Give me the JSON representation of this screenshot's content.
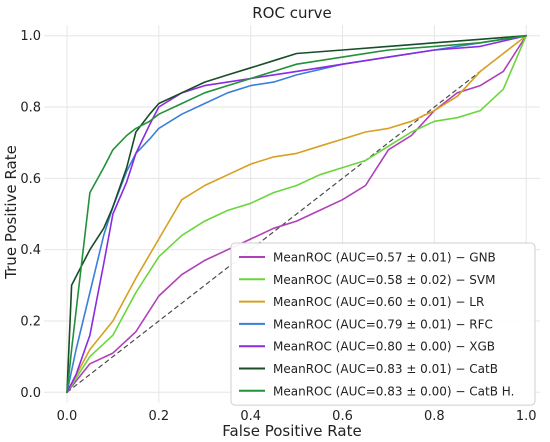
{
  "chart_data": {
    "type": "line",
    "title": "ROC curve",
    "xlabel": "False Positive Rate",
    "ylabel": "True Positive Rate",
    "xlim": [
      -0.05,
      1.03
    ],
    "ylim": [
      -0.03,
      1.03
    ],
    "xticks": [
      0.0,
      0.2,
      0.4,
      0.6,
      0.8,
      1.0
    ],
    "yticks": [
      0.0,
      0.2,
      0.4,
      0.6,
      0.8,
      1.0
    ],
    "xtick_labels": [
      "0.0",
      "0.2",
      "0.4",
      "0.6",
      "0.8",
      "1.0"
    ],
    "ytick_labels": [
      "0.0",
      "0.2",
      "0.4",
      "0.6",
      "0.8",
      "1.0"
    ],
    "grid": true,
    "legend_position": "lower-right",
    "reference_line": {
      "x": [
        0,
        1
      ],
      "y": [
        0,
        1
      ],
      "style": "dashed",
      "color": "#4a4a4a"
    },
    "series": [
      {
        "name": "MeanROC (AUC=0.57 ± 0.01) − GNB",
        "color": "#b040b8",
        "x": [
          0,
          0.05,
          0.1,
          0.15,
          0.2,
          0.25,
          0.3,
          0.35,
          0.4,
          0.45,
          0.5,
          0.55,
          0.6,
          0.65,
          0.7,
          0.75,
          0.8,
          0.85,
          0.9,
          0.95,
          1.0
        ],
        "y": [
          0,
          0.08,
          0.11,
          0.17,
          0.27,
          0.33,
          0.37,
          0.4,
          0.43,
          0.46,
          0.48,
          0.51,
          0.54,
          0.58,
          0.68,
          0.72,
          0.79,
          0.84,
          0.86,
          0.9,
          1.0
        ]
      },
      {
        "name": "MeanROC (AUC=0.58 ± 0.02) − SVM",
        "color": "#6ad63c",
        "x": [
          0,
          0.05,
          0.1,
          0.15,
          0.2,
          0.25,
          0.3,
          0.35,
          0.4,
          0.45,
          0.5,
          0.55,
          0.6,
          0.65,
          0.7,
          0.75,
          0.8,
          0.85,
          0.9,
          0.95,
          1.0
        ],
        "y": [
          0,
          0.1,
          0.16,
          0.28,
          0.38,
          0.44,
          0.48,
          0.51,
          0.53,
          0.56,
          0.58,
          0.61,
          0.63,
          0.65,
          0.69,
          0.73,
          0.76,
          0.77,
          0.79,
          0.85,
          1.0
        ]
      },
      {
        "name": "MeanROC (AUC=0.60 ± 0.01) − LR",
        "color": "#d7a021",
        "x": [
          0,
          0.05,
          0.1,
          0.15,
          0.2,
          0.25,
          0.3,
          0.35,
          0.4,
          0.45,
          0.5,
          0.55,
          0.6,
          0.65,
          0.7,
          0.75,
          0.8,
          0.85,
          0.9,
          0.95,
          1.0
        ],
        "y": [
          0,
          0.12,
          0.2,
          0.32,
          0.43,
          0.54,
          0.58,
          0.61,
          0.64,
          0.66,
          0.67,
          0.69,
          0.71,
          0.73,
          0.74,
          0.76,
          0.79,
          0.83,
          0.9,
          0.95,
          1.0
        ]
      },
      {
        "name": "MeanROC (AUC=0.79 ± 0.01) − RFC",
        "color": "#3b7fd9",
        "x": [
          0,
          0.02,
          0.05,
          0.08,
          0.1,
          0.13,
          0.15,
          0.18,
          0.2,
          0.25,
          0.3,
          0.35,
          0.4,
          0.45,
          0.5,
          0.6,
          0.7,
          0.8,
          0.9,
          1.0
        ],
        "y": [
          0,
          0.12,
          0.28,
          0.44,
          0.52,
          0.62,
          0.67,
          0.71,
          0.74,
          0.78,
          0.81,
          0.84,
          0.86,
          0.87,
          0.89,
          0.92,
          0.94,
          0.96,
          0.98,
          1.0
        ]
      },
      {
        "name": "MeanROC (AUC=0.80 ± 0.00) − XGB",
        "color": "#8a2be2",
        "x": [
          0,
          0.02,
          0.05,
          0.08,
          0.1,
          0.13,
          0.15,
          0.18,
          0.2,
          0.25,
          0.3,
          0.35,
          0.4,
          0.45,
          0.5,
          0.6,
          0.7,
          0.8,
          0.9,
          1.0
        ],
        "y": [
          0,
          0.05,
          0.16,
          0.36,
          0.5,
          0.59,
          0.67,
          0.75,
          0.8,
          0.84,
          0.86,
          0.87,
          0.88,
          0.89,
          0.9,
          0.92,
          0.94,
          0.96,
          0.97,
          1.0
        ]
      },
      {
        "name": "MeanROC (AUC=0.83 ± 0.01) − CatB",
        "color": "#184d28",
        "x": [
          0,
          0.01,
          0.03,
          0.05,
          0.08,
          0.1,
          0.13,
          0.15,
          0.18,
          0.2,
          0.25,
          0.3,
          0.35,
          0.4,
          0.45,
          0.5,
          0.6,
          0.7,
          0.8,
          0.9,
          1.0
        ],
        "y": [
          0,
          0.3,
          0.35,
          0.4,
          0.46,
          0.52,
          0.63,
          0.73,
          0.78,
          0.81,
          0.84,
          0.87,
          0.89,
          0.91,
          0.93,
          0.95,
          0.96,
          0.97,
          0.98,
          0.99,
          1.0
        ]
      },
      {
        "name": "MeanROC (AUC=0.83 ± 0.00) − CatB H.",
        "color": "#23913a",
        "x": [
          0,
          0.01,
          0.03,
          0.05,
          0.08,
          0.1,
          0.13,
          0.15,
          0.18,
          0.2,
          0.25,
          0.3,
          0.35,
          0.4,
          0.45,
          0.5,
          0.6,
          0.7,
          0.8,
          0.9,
          1.0
        ],
        "y": [
          0,
          0.12,
          0.34,
          0.56,
          0.63,
          0.68,
          0.72,
          0.74,
          0.76,
          0.78,
          0.81,
          0.84,
          0.86,
          0.88,
          0.9,
          0.92,
          0.94,
          0.96,
          0.97,
          0.98,
          1.0
        ]
      }
    ]
  }
}
